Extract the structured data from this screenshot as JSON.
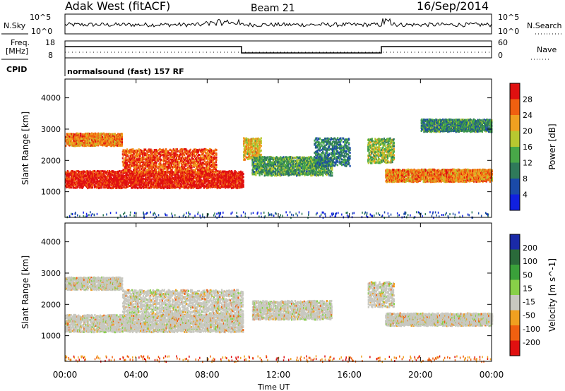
{
  "header": {
    "radar": "Adak West (fitACF)",
    "beam": "Beam 21",
    "date": "16/Sep/2014"
  },
  "noise_panel": {
    "left_label": "N.Sky",
    "right_label": "N.Search",
    "left_ticks": [
      "10^5",
      "10^0"
    ],
    "right_ticks": [
      "10^5",
      "10^0"
    ]
  },
  "freq_panel": {
    "left_label_1": "Freq.",
    "left_label_2": "[MHz]",
    "right_label": "Nave",
    "left_ticks": [
      "18",
      "8"
    ],
    "right_ticks": [
      "60",
      "0"
    ]
  },
  "cpid": {
    "label": "CPID",
    "text": "normalsound (fast) 157 RF"
  },
  "chart_data": [
    {
      "type": "heatmap",
      "title": "Power",
      "ylabel": "Slant Range [km]",
      "xlabel": "Time UT",
      "x_ticks": [
        "00:00",
        "04:00",
        "08:00",
        "12:00",
        "16:00",
        "20:00",
        "00:00"
      ],
      "y_ticks": [
        "1000",
        "2000",
        "3000",
        "4000"
      ],
      "ylim": [
        180,
        4600
      ],
      "xlim_hours": [
        0,
        24
      ],
      "colorbar_label": "Power [dB]",
      "colorbar_ticks": [
        "28",
        "24",
        "20",
        "16",
        "12",
        "8",
        "4"
      ],
      "colors": [
        "#1020e0",
        "#1a4aa8",
        "#2f7a5a",
        "#48a848",
        "#b8c830",
        "#f0a020",
        "#f06010",
        "#e01010"
      ],
      "bands": [
        {
          "t": [
            0,
            10
          ],
          "r": [
            1100,
            1650
          ],
          "v": 0.95
        },
        {
          "t": [
            0,
            3.2
          ],
          "r": [
            2450,
            2850
          ],
          "v": 0.75
        },
        {
          "t": [
            3.2,
            8.5
          ],
          "r": [
            1600,
            2350
          ],
          "v": 0.85
        },
        {
          "t": [
            10,
            11
          ],
          "r": [
            2000,
            2700
          ],
          "v": 0.65
        },
        {
          "t": [
            10.5,
            15
          ],
          "r": [
            1500,
            2100
          ],
          "v": 0.4
        },
        {
          "t": [
            14,
            16
          ],
          "r": [
            1800,
            2700
          ],
          "v": 0.3
        },
        {
          "t": [
            17,
            18.5
          ],
          "r": [
            1900,
            2700
          ],
          "v": 0.5
        },
        {
          "t": [
            18,
            24
          ],
          "r": [
            1300,
            1700
          ],
          "v": 0.75
        },
        {
          "t": [
            20,
            24
          ],
          "r": [
            2900,
            3300
          ],
          "v": 0.35
        }
      ]
    },
    {
      "type": "heatmap",
      "title": "Velocity",
      "ylabel": "Slant Range [km]",
      "xlabel": "Time UT",
      "x_ticks": [
        "00:00",
        "04:00",
        "08:00",
        "12:00",
        "16:00",
        "20:00",
        "00:00"
      ],
      "y_ticks": [
        "1000",
        "2000",
        "3000",
        "4000"
      ],
      "ylim": [
        180,
        4600
      ],
      "xlim_hours": [
        0,
        24
      ],
      "colorbar_label": "Velocity [m s^-1]",
      "colorbar_ticks": [
        "200",
        "100",
        "50",
        "15",
        "-15",
        "-50",
        "-100",
        "-200"
      ],
      "colors": [
        "#1a2aa8",
        "#2a6a3a",
        "#3aa03a",
        "#88d048",
        "#c8c8c0",
        "#f0a020",
        "#f06010",
        "#e01010"
      ],
      "bands": [
        {
          "t": [
            0,
            10
          ],
          "r": [
            1100,
            1650
          ],
          "v": 0.5
        },
        {
          "t": [
            0,
            3.2
          ],
          "r": [
            2450,
            2850
          ],
          "v": 0.5
        },
        {
          "t": [
            3.2,
            10
          ],
          "r": [
            1600,
            2450
          ],
          "v": 0.5
        },
        {
          "t": [
            10.5,
            15
          ],
          "r": [
            1500,
            2100
          ],
          "v": 0.35
        },
        {
          "t": [
            17,
            18.5
          ],
          "r": [
            1900,
            2700
          ],
          "v": 0.3
        },
        {
          "t": [
            18,
            24
          ],
          "r": [
            1300,
            1700
          ],
          "v": 0.5
        }
      ]
    }
  ]
}
